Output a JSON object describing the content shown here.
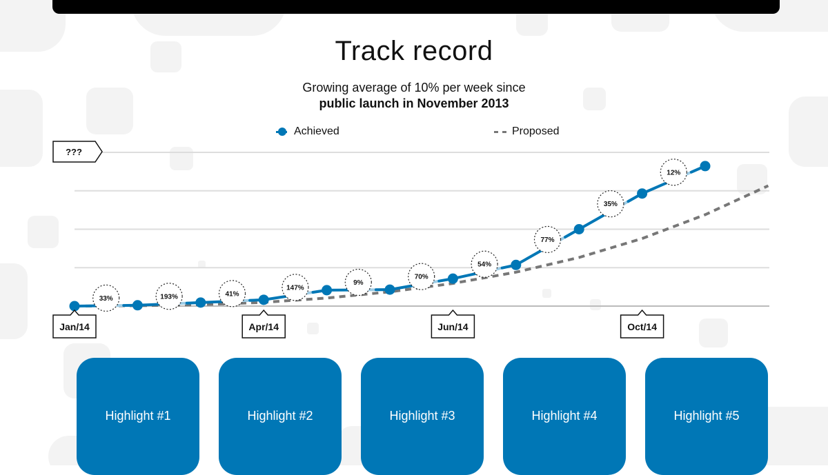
{
  "title": "Track record",
  "subtitle": {
    "line1": "Growing average of 10% per week since",
    "line2": "public launch in November 2013"
  },
  "legend": {
    "achieved": "Achieved",
    "proposed": "Proposed"
  },
  "colors": {
    "achieved_dark": "#0077b6",
    "achieved_light": "#9fcde6",
    "proposed": "#777777",
    "grid": "#dddddd",
    "highlight_bg": "#0077b6",
    "background_shapes": "#f2f2f2"
  },
  "chart_data": {
    "type": "line",
    "y_axis_callout": "???",
    "x_labels": [
      "Jan/14",
      "Apr/14",
      "Jun/14",
      "Oct/14"
    ],
    "x_label_indices": [
      0,
      3,
      6,
      9
    ],
    "grid": true,
    "series": [
      {
        "name": "Achieved",
        "style": "solid-with-markers",
        "values": [
          0,
          0.6,
          2.6,
          4.6,
          11.6,
          12.0,
          20.0,
          30.0,
          56.0,
          82.0,
          102.0
        ]
      },
      {
        "name": "Proposed",
        "style": "dashed",
        "values": [
          0,
          0.3,
          1.0,
          2.7,
          5.9,
          10.4,
          16.5,
          24.7,
          35.4,
          49.2,
          66.6,
          87.7
        ]
      }
    ],
    "growth_labels": [
      "33%",
      "193%",
      "41%",
      "147%",
      "9%",
      "70%",
      "54%",
      "77%",
      "35%",
      "12%"
    ],
    "ylim": [
      0,
      112
    ]
  },
  "highlights": [
    "Highlight #1",
    "Highlight #2",
    "Highlight #3",
    "Highlight #4",
    "Highlight #5"
  ]
}
